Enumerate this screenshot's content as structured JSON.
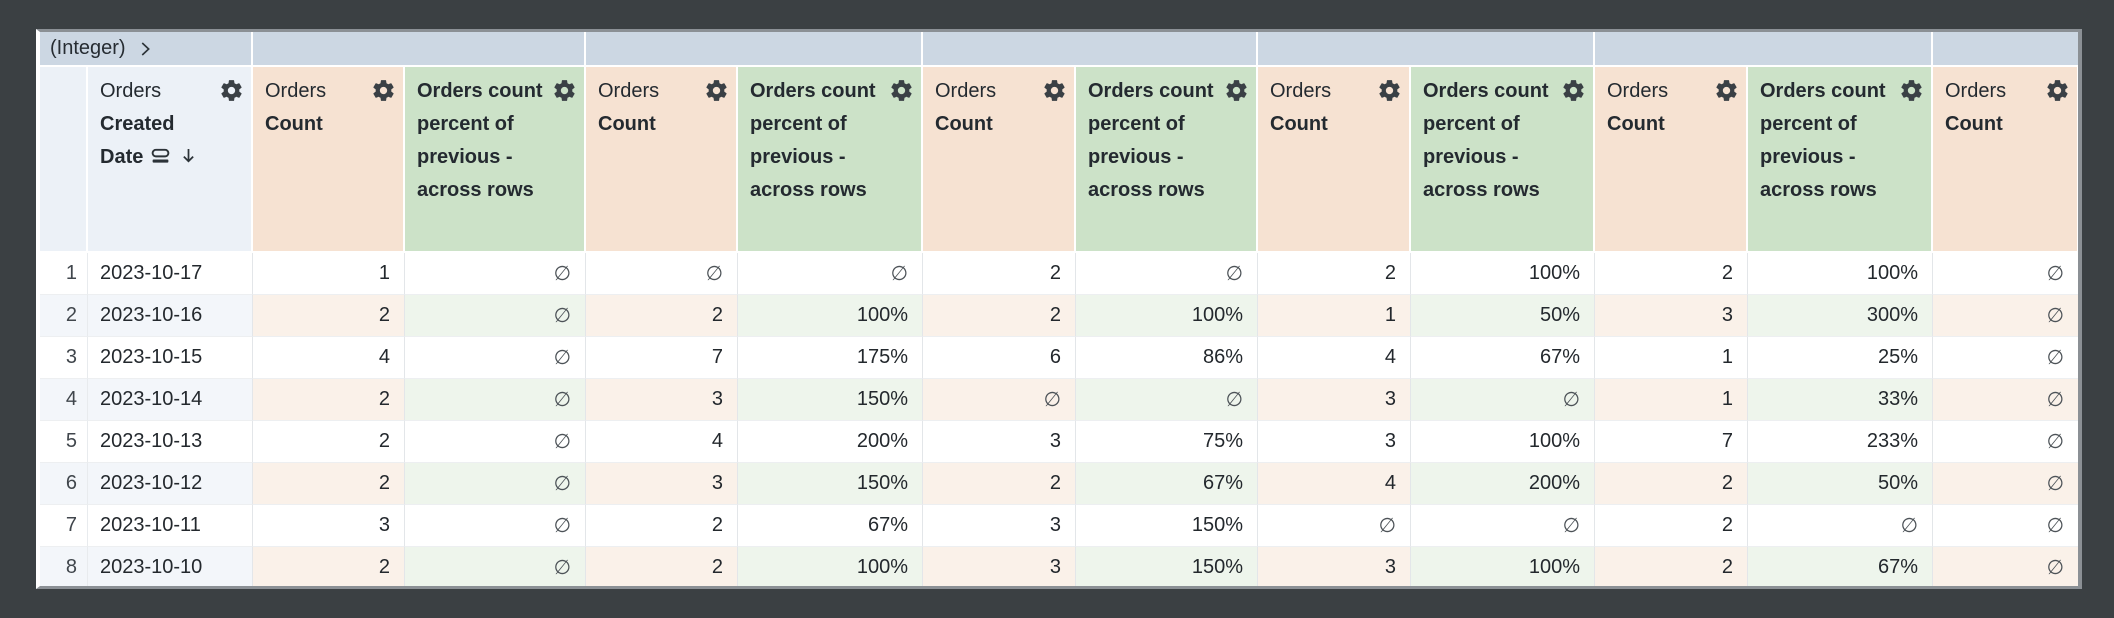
{
  "pivot_band": {
    "label": "(Integer)",
    "expand_icon": "chevron-right-icon"
  },
  "columns": [
    {
      "kind": "dimension",
      "view": "Orders",
      "field": "Created Date",
      "sort": "desc",
      "icons": [
        "dimension-fill-icon",
        "sort-desc-arrow-icon",
        "gear-icon"
      ]
    },
    {
      "kind": "count",
      "view": "Orders",
      "field": "Count",
      "icons": [
        "gear-icon"
      ]
    },
    {
      "kind": "percent",
      "label": "Orders count percent of previous - across rows",
      "icons": [
        "gear-icon"
      ]
    },
    {
      "kind": "count",
      "view": "Orders",
      "field": "Count",
      "icons": [
        "gear-icon"
      ]
    },
    {
      "kind": "percent",
      "label": "Orders count percent of previous - across rows",
      "icons": [
        "gear-icon"
      ]
    },
    {
      "kind": "count",
      "view": "Orders",
      "field": "Count",
      "icons": [
        "gear-icon"
      ]
    },
    {
      "kind": "percent",
      "label": "Orders count percent of previous - across rows",
      "icons": [
        "gear-icon"
      ]
    },
    {
      "kind": "count",
      "view": "Orders",
      "field": "Count",
      "icons": [
        "gear-icon"
      ]
    },
    {
      "kind": "percent",
      "label": "Orders count percent of previous - across rows",
      "icons": [
        "gear-icon"
      ]
    },
    {
      "kind": "count",
      "view": "Orders",
      "field": "Count",
      "icons": [
        "gear-icon"
      ]
    },
    {
      "kind": "percent",
      "label": "Orders count percent of previous - across rows",
      "icons": [
        "gear-icon"
      ]
    },
    {
      "kind": "count",
      "view": "Orders",
      "field": "Count",
      "icons": [
        "gear-icon"
      ]
    }
  ],
  "null_symbol": "∅",
  "rows": [
    {
      "num": "1",
      "date": "2023-10-17",
      "values": [
        "1",
        "∅",
        "∅",
        "∅",
        "2",
        "∅",
        "2",
        "100%",
        "2",
        "100%",
        "∅"
      ]
    },
    {
      "num": "2",
      "date": "2023-10-16",
      "values": [
        "2",
        "∅",
        "2",
        "100%",
        "2",
        "100%",
        "1",
        "50%",
        "3",
        "300%",
        "∅"
      ]
    },
    {
      "num": "3",
      "date": "2023-10-15",
      "values": [
        "4",
        "∅",
        "7",
        "175%",
        "6",
        "86%",
        "4",
        "67%",
        "1",
        "25%",
        "∅"
      ]
    },
    {
      "num": "4",
      "date": "2023-10-14",
      "values": [
        "2",
        "∅",
        "3",
        "150%",
        "∅",
        "∅",
        "3",
        "∅",
        "1",
        "33%",
        "∅"
      ]
    },
    {
      "num": "5",
      "date": "2023-10-13",
      "values": [
        "2",
        "∅",
        "4",
        "200%",
        "3",
        "75%",
        "3",
        "100%",
        "7",
        "233%",
        "∅"
      ]
    },
    {
      "num": "6",
      "date": "2023-10-12",
      "values": [
        "2",
        "∅",
        "3",
        "150%",
        "2",
        "67%",
        "4",
        "200%",
        "2",
        "50%",
        "∅"
      ]
    },
    {
      "num": "7",
      "date": "2023-10-11",
      "values": [
        "3",
        "∅",
        "2",
        "67%",
        "3",
        "150%",
        "∅",
        "∅",
        "2",
        "∅",
        "∅"
      ]
    },
    {
      "num": "8",
      "date": "2023-10-10",
      "values": [
        "2",
        "∅",
        "2",
        "100%",
        "3",
        "150%",
        "3",
        "100%",
        "2",
        "67%",
        "∅"
      ]
    }
  ],
  "colors": {
    "background": "#3b4043",
    "frame_border": "#8b9095",
    "pivot_band_bg": "#ccd7e3",
    "dimension_header_bg": "#ecf1f7",
    "count_header_bg": "#f6e2d2",
    "percent_header_bg": "#cce2c8",
    "even_row_dimension_bg": "#f3f6fa",
    "even_row_count_bg": "#faf1e9",
    "even_row_percent_bg": "#eef5ec",
    "header_text": "#242a30",
    "value_text": "#23282d",
    "null_text": "#4d5358"
  }
}
